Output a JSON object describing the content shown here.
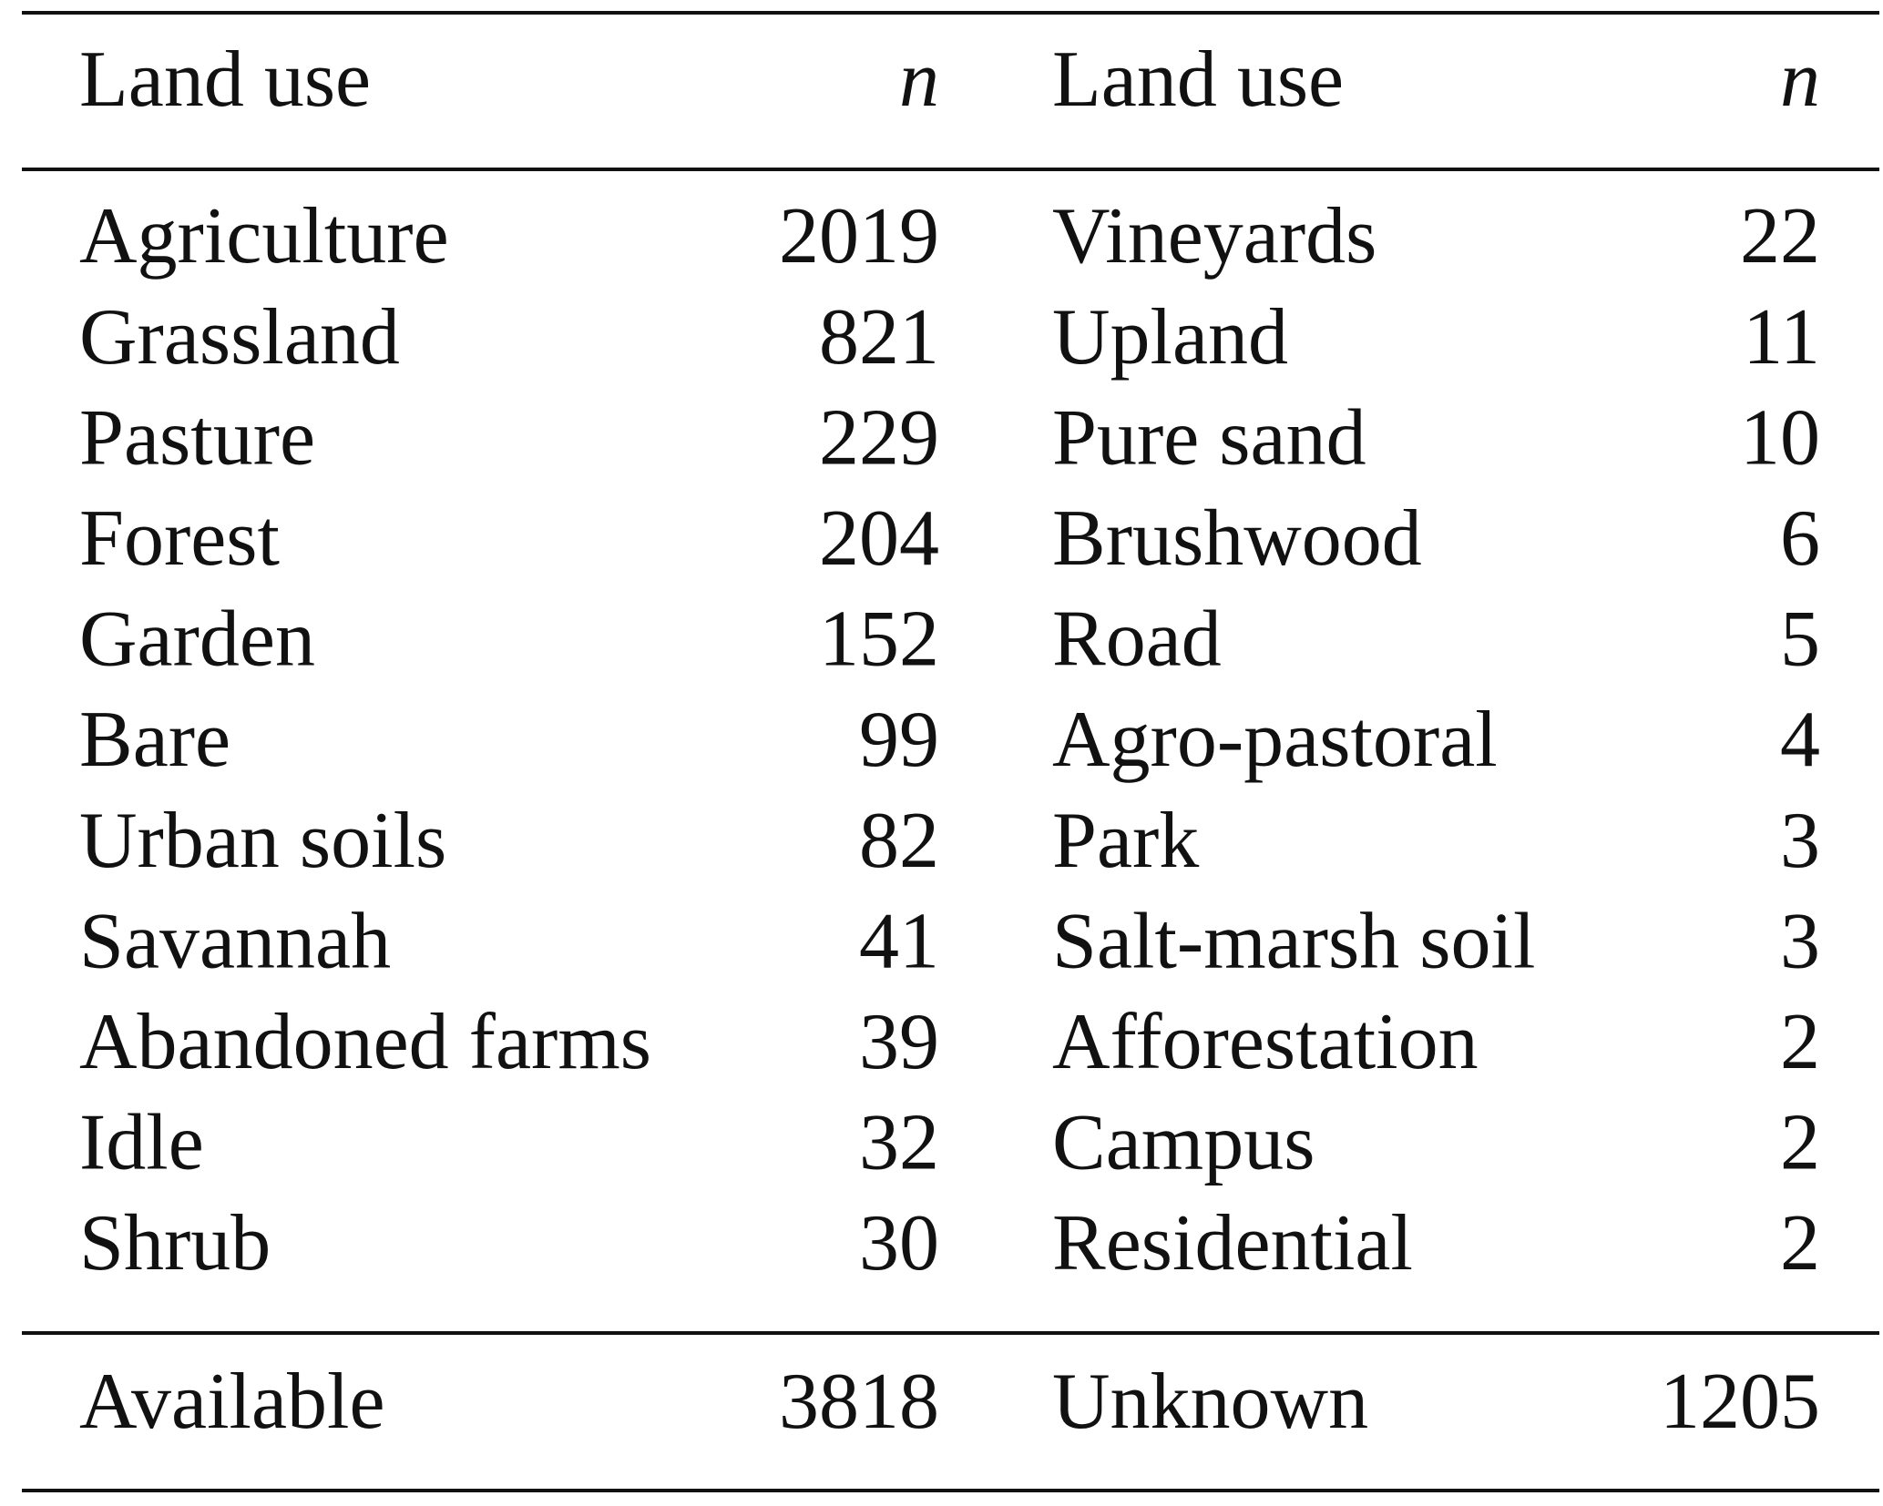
{
  "table": {
    "header": [
      "Land use",
      "n",
      "Land use",
      "n"
    ],
    "rows": [
      [
        "Agriculture",
        2019,
        "Vineyards",
        22
      ],
      [
        "Grassland",
        821,
        "Upland",
        11
      ],
      [
        "Pasture",
        229,
        "Pure sand",
        10
      ],
      [
        "Forest",
        204,
        "Brushwood",
        6
      ],
      [
        "Garden",
        152,
        "Road",
        5
      ],
      [
        "Bare",
        99,
        "Agro-pastoral",
        4
      ],
      [
        "Urban soils",
        82,
        "Park",
        3
      ],
      [
        "Savannah",
        41,
        "Salt-marsh soil",
        3
      ],
      [
        "Abandoned farms",
        39,
        "Afforestation",
        2
      ],
      [
        "Idle",
        32,
        "Campus",
        2
      ],
      [
        "Shrub",
        30,
        "Residential",
        2
      ]
    ],
    "footer": [
      "Available",
      3818,
      "Unknown",
      1205
    ]
  }
}
